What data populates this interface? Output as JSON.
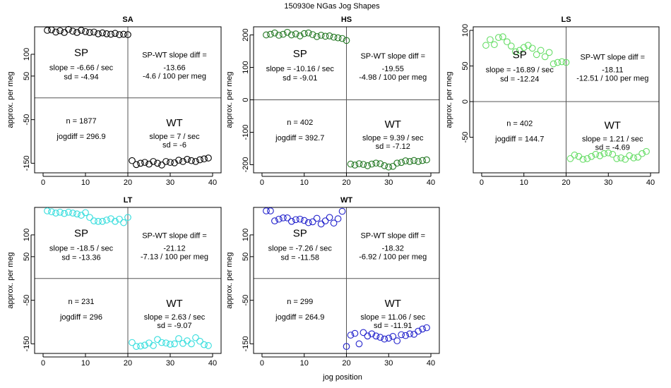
{
  "figure": {
    "title": "150930e    NGas Jog Shapes",
    "xlabel": "jog position",
    "ylabel": "approx. per meg"
  },
  "chart_data": [
    {
      "type": "scatter",
      "title": "SA",
      "color": "#000000",
      "xlim": [
        -2,
        42
      ],
      "ylim": [
        -172,
        163
      ],
      "xticks": [
        0,
        10,
        20,
        30,
        40
      ],
      "yticks": [
        -150,
        -50,
        50,
        100
      ],
      "x": [
        1,
        2,
        3,
        4,
        5,
        6,
        7,
        8,
        9,
        10,
        11,
        12,
        13,
        14,
        15,
        16,
        17,
        18,
        19,
        20,
        21,
        22,
        23,
        24,
        25,
        26,
        27,
        28,
        29,
        30,
        31,
        32,
        33,
        34,
        35,
        36,
        37,
        38,
        39
      ],
      "y": [
        155,
        156,
        151,
        154,
        150,
        157,
        153,
        150,
        155,
        152,
        150,
        151,
        147,
        149,
        147,
        146,
        148,
        145,
        146,
        145,
        -144,
        -153,
        -150,
        -148,
        -152,
        -146,
        -150,
        -154,
        -146,
        -148,
        -149,
        -143,
        -146,
        -141,
        -144,
        -146,
        -142,
        -140,
        -138
      ],
      "labels": {
        "sp": "SP",
        "sp_slope": "slope = -6.66 / sec",
        "sp_sd": "sd = -4.94",
        "diff_title": "SP-WT slope diff =",
        "diff_value": "-13.66",
        "diff_per_meg": "-4.6 / 100 per meg",
        "n": "n = 1877",
        "jogdiff": "jogdiff = 296.9",
        "wt": "WT",
        "wt_slope": "slope = 7 / sec",
        "wt_sd": "sd = -6"
      }
    },
    {
      "type": "scatter",
      "title": "HS",
      "color": "#227722",
      "xlim": [
        -2,
        42
      ],
      "ylim": [
        -225,
        225
      ],
      "xticks": [
        0,
        10,
        20,
        30,
        40
      ],
      "yticks": [
        -200,
        -100,
        0,
        100,
        200
      ],
      "x": [
        1,
        2,
        3,
        4,
        5,
        6,
        7,
        8,
        9,
        10,
        11,
        12,
        13,
        14,
        15,
        16,
        17,
        18,
        19,
        20,
        21,
        22,
        23,
        24,
        25,
        26,
        27,
        28,
        29,
        30,
        31,
        32,
        33,
        34,
        35,
        36,
        37,
        38,
        39
      ],
      "y": [
        200,
        202,
        206,
        199,
        202,
        208,
        200,
        203,
        197,
        204,
        206,
        201,
        195,
        199,
        196,
        197,
        193,
        191,
        189,
        183,
        -198,
        -201,
        -197,
        -199,
        -203,
        -198,
        -195,
        -197,
        -203,
        -207,
        -205,
        -195,
        -193,
        -188,
        -190,
        -187,
        -190,
        -187,
        -185
      ],
      "labels": {
        "sp": "SP",
        "sp_slope": "slope = -10.16 / sec",
        "sp_sd": "sd = -9.01",
        "diff_title": "SP-WT slope diff =",
        "diff_value": "-19.55",
        "diff_per_meg": "-4.98 / 100 per meg",
        "n": "n = 402",
        "jogdiff": "jogdiff = 392.7",
        "wt": "WT",
        "wt_slope": "slope = 9.39 / sec",
        "wt_sd": "sd = -7.12"
      }
    },
    {
      "type": "scatter",
      "title": "LS",
      "color": "#66dd66",
      "xlim": [
        -2,
        42
      ],
      "ylim": [
        -100,
        105
      ],
      "xticks": [
        0,
        10,
        20,
        30,
        40
      ],
      "yticks": [
        -50,
        0,
        50,
        100
      ],
      "x": [
        1,
        2,
        3,
        4,
        5,
        6,
        7,
        8,
        9,
        10,
        11,
        12,
        13,
        14,
        15,
        16,
        17,
        18,
        19,
        20,
        21,
        22,
        23,
        24,
        25,
        26,
        27,
        28,
        29,
        30,
        31,
        32,
        33,
        34,
        35,
        36,
        37,
        38,
        39
      ],
      "y": [
        79,
        87,
        80,
        90,
        91,
        84,
        78,
        70,
        72,
        76,
        79,
        75,
        66,
        72,
        63,
        69,
        53,
        55,
        56,
        55,
        -80,
        -75,
        -77,
        -81,
        -80,
        -77,
        -74,
        -76,
        -73,
        -72,
        -74,
        -80,
        -79,
        -81,
        -76,
        -79,
        -78,
        -73,
        -70
      ],
      "labels": {
        "sp": "SP",
        "sp_slope": "slope = -16.89 / sec",
        "sp_sd": "sd = -12.24",
        "diff_title": "SP-WT slope diff =",
        "diff_value": "-18.11",
        "diff_per_meg": "-12.51 / 100 per meg",
        "n": "n = 402",
        "jogdiff": "jogdiff = 144.7",
        "wt": "WT",
        "wt_slope": "slope = 1.21 / sec",
        "wt_sd": "sd = -4.69"
      }
    },
    {
      "type": "scatter",
      "title": "LT",
      "color": "#33dddd",
      "xlim": [
        -2,
        42
      ],
      "ylim": [
        -172,
        163
      ],
      "xticks": [
        0,
        10,
        20,
        30,
        40
      ],
      "yticks": [
        -150,
        -50,
        50,
        100
      ],
      "x": [
        1,
        2,
        3,
        4,
        5,
        6,
        7,
        8,
        9,
        10,
        11,
        12,
        13,
        14,
        15,
        16,
        17,
        18,
        19,
        20,
        21,
        22,
        23,
        24,
        25,
        26,
        27,
        28,
        29,
        30,
        31,
        32,
        33,
        34,
        35,
        36,
        37,
        38,
        39
      ],
      "y": [
        155,
        153,
        150,
        152,
        149,
        152,
        150,
        148,
        145,
        151,
        140,
        132,
        131,
        131,
        134,
        137,
        131,
        136,
        128,
        140,
        -147,
        -156,
        -155,
        -153,
        -148,
        -154,
        -140,
        -147,
        -148,
        -151,
        -150,
        -138,
        -149,
        -143,
        -150,
        -136,
        -144,
        -152,
        -154
      ],
      "labels": {
        "sp": "SP",
        "sp_slope": "slope = -18.5 / sec",
        "sp_sd": "sd = -13.36",
        "diff_title": "SP-WT slope diff =",
        "diff_value": "-21.12",
        "diff_per_meg": "-7.13 / 100 per meg",
        "n": "n = 231",
        "jogdiff": "jogdiff = 296",
        "wt": "WT",
        "wt_slope": "slope = 2.63 / sec",
        "wt_sd": "sd = -9.07"
      }
    },
    {
      "type": "scatter",
      "title": "WT",
      "color": "#2222cc",
      "xlim": [
        -2,
        42
      ],
      "ylim": [
        -172,
        163
      ],
      "xticks": [
        0,
        10,
        20,
        30,
        40
      ],
      "yticks": [
        -150,
        -50,
        50,
        100
      ],
      "x": [
        1,
        2,
        3,
        4,
        5,
        6,
        7,
        8,
        9,
        10,
        11,
        12,
        13,
        14,
        15,
        16,
        17,
        18,
        19,
        20,
        21,
        22,
        23,
        24,
        25,
        26,
        27,
        28,
        29,
        30,
        31,
        32,
        33,
        34,
        35,
        36,
        37,
        38,
        39
      ],
      "y": [
        155,
        155,
        132,
        136,
        139,
        139,
        131,
        135,
        136,
        133,
        128,
        130,
        138,
        125,
        132,
        140,
        127,
        137,
        154,
        -156,
        -130,
        -126,
        -150,
        -124,
        -132,
        -127,
        -132,
        -135,
        -139,
        -137,
        -133,
        -143,
        -129,
        -131,
        -127,
        -128,
        -121,
        -116,
        -113
      ],
      "labels": {
        "sp": "SP",
        "sp_slope": "slope = -7.26 / sec",
        "sp_sd": "sd = -11.58",
        "diff_title": "SP-WT slope diff =",
        "diff_value": "-18.32",
        "diff_per_meg": "-6.92 / 100 per meg",
        "n": "n = 299",
        "jogdiff": "jogdiff = 264.9",
        "wt": "WT",
        "wt_slope": "slope = 11.06 / sec",
        "wt_sd": "sd = -11.91"
      }
    }
  ]
}
